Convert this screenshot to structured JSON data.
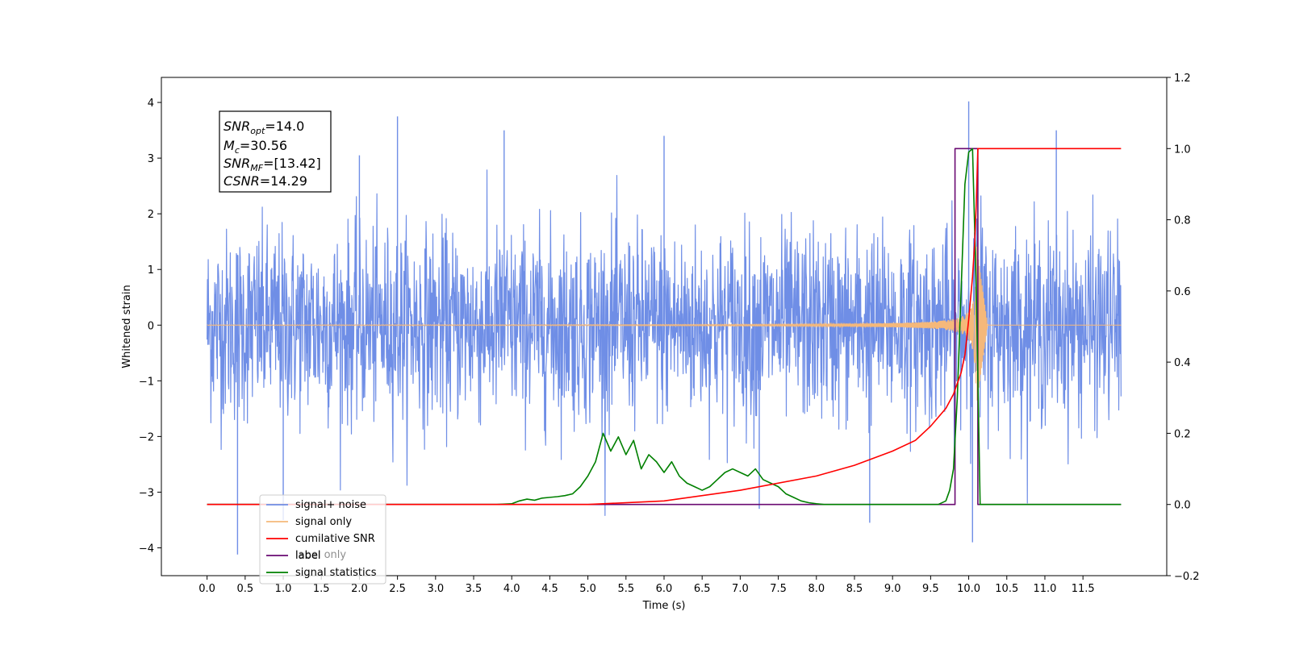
{
  "chart_data": {
    "type": "line",
    "xlabel": "Time (s)",
    "ylabel": "Whitened strain",
    "x_range": [
      -0.6,
      12.6
    ],
    "x_ticks": [
      0.0,
      0.5,
      1.0,
      1.5,
      2.0,
      2.5,
      3.0,
      3.5,
      4.0,
      4.5,
      5.0,
      5.5,
      6.0,
      6.5,
      7.0,
      7.5,
      8.0,
      8.5,
      9.0,
      9.5,
      10.0,
      10.5,
      11.0,
      11.5
    ],
    "x_tick_labels": [
      "0.0",
      "0.5",
      "1.0",
      "1.5",
      "2.0",
      "2.5",
      "3.0",
      "3.5",
      "4.0",
      "4.5",
      "5.0",
      "5.5",
      "6.0",
      "6.5",
      "7.0",
      "7.5",
      "8.0",
      "8.5",
      "9.0",
      "9.5",
      "10.0",
      "10.5",
      "11.0",
      "11.5"
    ],
    "y_left_range": [
      -4.5,
      4.45
    ],
    "y_left_ticks": [
      -4,
      -3,
      -2,
      -1,
      0,
      1,
      2,
      3,
      4
    ],
    "y_right_range": [
      -0.2,
      1.2
    ],
    "y_right_ticks": [
      -0.2,
      0.0,
      0.2,
      0.4,
      0.6,
      0.8,
      1.0,
      1.2
    ],
    "y_right_tick_labels": [
      "−0.2",
      "0.0",
      "0.2",
      "0.4",
      "0.6",
      "0.8",
      "1.0",
      "1.2"
    ],
    "grid": false,
    "legend_position": "lower-left",
    "series": [
      {
        "name": "signal+ noise",
        "axis": "left",
        "color": "#6f8ee6",
        "x_start": 0.0,
        "x_end": 12.0,
        "noise_std": 0.85,
        "peaks": [
          [
            0.4,
            -4.12
          ],
          [
            2.5,
            3.75
          ],
          [
            10.0,
            4.02
          ],
          [
            10.05,
            -3.9
          ],
          [
            8.7,
            -3.55
          ],
          [
            7.25,
            -3.3
          ],
          [
            6.0,
            3.4
          ],
          [
            3.9,
            3.5
          ],
          [
            11.15,
            3.5
          ],
          [
            2.0,
            3.05
          ],
          [
            1.0,
            -3.5
          ]
        ]
      },
      {
        "name": "signal only",
        "axis": "left",
        "color": "#f5b87a",
        "chirp_t_merge": 10.1,
        "chirp_peak_amp": 1.45,
        "chirp_ringdown_end": 10.25
      },
      {
        "name": "cumilative SNR",
        "axis": "right",
        "color": "#ff0000",
        "x": [
          0.0,
          5.0,
          6.0,
          7.0,
          8.0,
          8.5,
          9.0,
          9.3,
          9.5,
          9.7,
          9.8,
          9.9,
          9.95,
          10.0,
          10.05,
          10.08,
          10.1,
          10.12,
          12.0
        ],
        "y": [
          0.0,
          0.0,
          0.01,
          0.04,
          0.08,
          0.11,
          0.15,
          0.18,
          0.22,
          0.27,
          0.31,
          0.37,
          0.42,
          0.52,
          0.64,
          0.74,
          0.85,
          1.0,
          1.0
        ]
      },
      {
        "name": "label",
        "axis": "right",
        "color": "#6a0a72",
        "x": [
          0.0,
          9.82,
          9.82,
          10.12,
          10.12,
          12.0
        ],
        "y": [
          0.0,
          0.0,
          1.0,
          1.0,
          0.0,
          0.0
        ]
      },
      {
        "name": "signal statistics",
        "axis": "right",
        "color": "#008000",
        "x": [
          0.0,
          3.8,
          4.0,
          4.1,
          4.2,
          4.3,
          4.4,
          4.5,
          4.6,
          4.7,
          4.8,
          4.9,
          5.0,
          5.1,
          5.2,
          5.3,
          5.4,
          5.5,
          5.6,
          5.7,
          5.8,
          5.9,
          6.0,
          6.1,
          6.2,
          6.3,
          6.4,
          6.5,
          6.6,
          6.7,
          6.8,
          6.9,
          7.0,
          7.1,
          7.2,
          7.3,
          7.4,
          7.5,
          7.6,
          7.7,
          7.8,
          7.9,
          8.0,
          8.1,
          9.6,
          9.7,
          9.75,
          9.8,
          9.85,
          9.9,
          9.95,
          10.0,
          10.05,
          10.1,
          10.15,
          12.0
        ],
        "y": [
          0.0,
          0.0,
          0.002,
          0.01,
          0.015,
          0.012,
          0.018,
          0.02,
          0.022,
          0.025,
          0.03,
          0.05,
          0.08,
          0.12,
          0.2,
          0.15,
          0.19,
          0.14,
          0.18,
          0.1,
          0.14,
          0.12,
          0.09,
          0.12,
          0.08,
          0.06,
          0.05,
          0.04,
          0.05,
          0.07,
          0.09,
          0.1,
          0.09,
          0.08,
          0.1,
          0.07,
          0.06,
          0.05,
          0.03,
          0.02,
          0.01,
          0.005,
          0.002,
          0.0,
          0.0,
          0.01,
          0.04,
          0.1,
          0.3,
          0.6,
          0.9,
          0.99,
          1.0,
          0.6,
          0.0,
          0.0
        ]
      }
    ],
    "legend_entries": [
      "signal+ noise",
      "signal only",
      "cumilative SNR",
      "label",
      "signal statistics"
    ],
    "ghost_legend_text": "label only",
    "stats_box": {
      "snr_opt_label": "SNR",
      "snr_opt_sub": "opt",
      "snr_opt_value": "=14.0",
      "mc_label": "M",
      "mc_sub": "c",
      "mc_value": "=30.56",
      "snr_mf_label": "SNR",
      "snr_mf_sub": "MF",
      "snr_mf_value": "=[13.42]",
      "csnr_label": "CSNR",
      "csnr_value": "=14.29"
    }
  }
}
